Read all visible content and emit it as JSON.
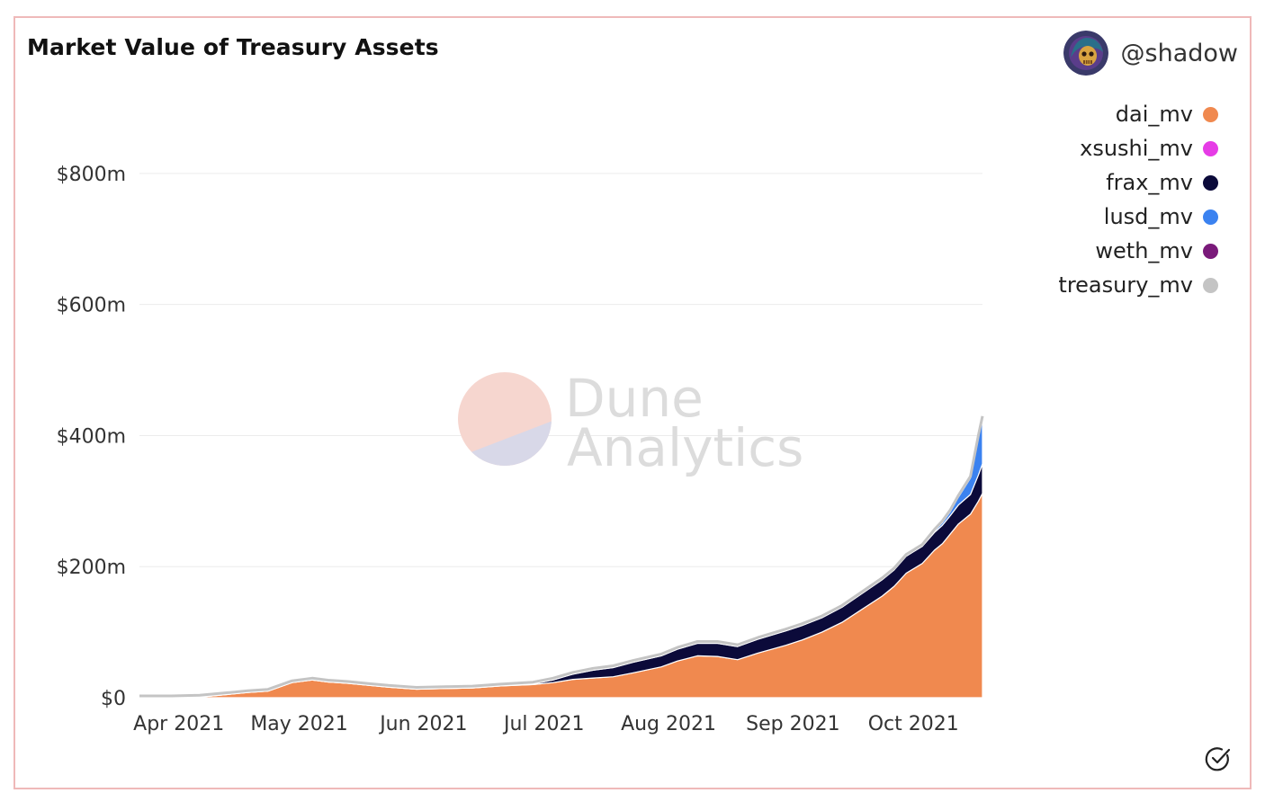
{
  "user": {
    "handle": "@shadow",
    "avatar_icon": "skull-avatar-icon"
  },
  "watermark": {
    "line1": "Dune",
    "line2": "Analytics"
  },
  "colors": {
    "dai_mv": "#f0894f",
    "xsushi_mv": "#e63ce6",
    "frax_mv": "#0b0a3a",
    "lusd_mv": "#3b82f0",
    "weth_mv": "#7a1a7a",
    "treasury_mv": "#c4c4c4",
    "gridline": "#ececec",
    "frame_border": "#efb9b9"
  },
  "chart_data": {
    "type": "area",
    "stacked": true,
    "title": "Market Value of Treasury Assets",
    "xlabel": "",
    "ylabel": "",
    "xlim": [
      "2021-03-24",
      "2021-10-20"
    ],
    "ylim": [
      0,
      900
    ],
    "y_ticks": [
      0,
      200,
      400,
      600,
      800
    ],
    "y_tick_labels": [
      "$0",
      "$200m",
      "$400m",
      "$600m",
      "$800m"
    ],
    "x_ticks": [
      "2021-04-01",
      "2021-05-01",
      "2021-06-01",
      "2021-07-01",
      "2021-08-01",
      "2021-09-01",
      "2021-10-01"
    ],
    "x_tick_labels": [
      "Apr 2021",
      "May 2021",
      "Jun 2021",
      "Jul 2021",
      "Aug 2021",
      "Sep 2021",
      "Oct 2021"
    ],
    "grid": true,
    "legend_position": "top-right",
    "legend": [
      "dai_mv",
      "xsushi_mv",
      "frax_mv",
      "lusd_mv",
      "weth_mv",
      "treasury_mv"
    ],
    "x": [
      "2021-03-24",
      "2021-04-01",
      "2021-04-08",
      "2021-04-15",
      "2021-04-20",
      "2021-04-25",
      "2021-05-01",
      "2021-05-06",
      "2021-05-10",
      "2021-05-15",
      "2021-05-20",
      "2021-05-25",
      "2021-06-01",
      "2021-06-08",
      "2021-06-15",
      "2021-06-22",
      "2021-06-30",
      "2021-07-05",
      "2021-07-10",
      "2021-07-15",
      "2021-07-20",
      "2021-07-25",
      "2021-08-01",
      "2021-08-05",
      "2021-08-10",
      "2021-08-15",
      "2021-08-20",
      "2021-08-25",
      "2021-09-01",
      "2021-09-05",
      "2021-09-10",
      "2021-09-15",
      "2021-09-20",
      "2021-09-25",
      "2021-09-28",
      "2021-10-01",
      "2021-10-05",
      "2021-10-08",
      "2021-10-10",
      "2021-10-12",
      "2021-10-14",
      "2021-10-17",
      "2021-10-19",
      "2021-10-20"
    ],
    "series": [
      {
        "name": "dai_mv",
        "values": [
          0,
          0,
          1,
          5,
          8,
          10,
          23,
          27,
          24,
          22,
          19,
          16,
          13,
          14,
          15,
          18,
          20,
          23,
          28,
          30,
          32,
          38,
          47,
          56,
          64,
          63,
          58,
          68,
          80,
          88,
          100,
          115,
          135,
          155,
          170,
          190,
          205,
          225,
          235,
          250,
          265,
          280,
          300,
          312
        ]
      },
      {
        "name": "xsushi_mv",
        "values": [
          0,
          0,
          0,
          0,
          0,
          0,
          0,
          0,
          0,
          0,
          0,
          0,
          0,
          0,
          0,
          0,
          0,
          0,
          0,
          0,
          0,
          0,
          0,
          0,
          0,
          0,
          0,
          0,
          0,
          0,
          0,
          0,
          0,
          0,
          0,
          0,
          0,
          0,
          0,
          0,
          0,
          0,
          0,
          0
        ]
      },
      {
        "name": "frax_mv",
        "values": [
          0,
          0,
          0,
          0,
          0,
          0,
          0,
          0,
          0,
          0,
          0,
          0,
          0,
          0,
          0,
          0,
          1,
          4,
          8,
          12,
          14,
          16,
          17,
          18,
          19,
          20,
          20,
          21,
          22,
          22,
          22,
          23,
          24,
          25,
          25,
          26,
          26,
          27,
          28,
          28,
          29,
          30,
          40,
          45
        ]
      },
      {
        "name": "lusd_mv",
        "values": [
          0,
          0,
          0,
          0,
          0,
          0,
          0,
          0,
          0,
          0,
          0,
          0,
          0,
          0,
          0,
          0,
          0,
          0,
          0,
          0,
          0,
          0,
          0,
          0,
          0,
          0,
          0,
          0,
          0,
          0,
          0,
          0,
          0,
          0,
          0,
          0,
          0,
          2,
          4,
          6,
          12,
          25,
          58,
          70
        ]
      },
      {
        "name": "weth_mv",
        "values": [
          0,
          0,
          0,
          0,
          0,
          0,
          0,
          0,
          0,
          0,
          0,
          0,
          0,
          0,
          0,
          0,
          0,
          0,
          0,
          0,
          0,
          0,
          0,
          0,
          0,
          0,
          0,
          0,
          0,
          0,
          0,
          0,
          0,
          0,
          0,
          0,
          0,
          0,
          0,
          0,
          0,
          0,
          0,
          0
        ]
      },
      {
        "name": "treasury_mv",
        "values": [
          0,
          0,
          1,
          5,
          8,
          10,
          23,
          27,
          24,
          22,
          19,
          16,
          13,
          14,
          15,
          18,
          21,
          27,
          36,
          42,
          46,
          54,
          64,
          74,
          83,
          83,
          78,
          89,
          102,
          110,
          122,
          138,
          159,
          180,
          195,
          216,
          231,
          254,
          267,
          284,
          306,
          335,
          398,
          427
        ]
      }
    ]
  }
}
